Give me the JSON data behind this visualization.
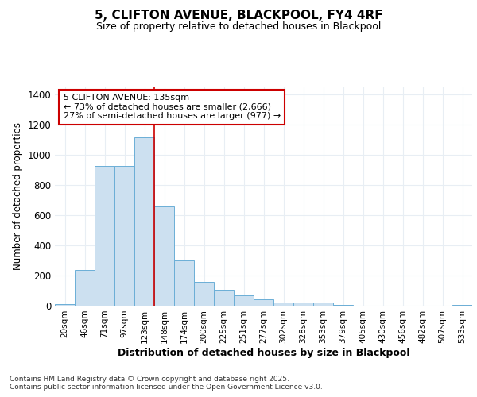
{
  "title_line1": "5, CLIFTON AVENUE, BLACKPOOL, FY4 4RF",
  "title_line2": "Size of property relative to detached houses in Blackpool",
  "xlabel": "Distribution of detached houses by size in Blackpool",
  "ylabel": "Number of detached properties",
  "bin_labels": [
    "20sqm",
    "46sqm",
    "71sqm",
    "97sqm",
    "123sqm",
    "148sqm",
    "174sqm",
    "200sqm",
    "225sqm",
    "251sqm",
    "277sqm",
    "302sqm",
    "328sqm",
    "353sqm",
    "379sqm",
    "405sqm",
    "430sqm",
    "456sqm",
    "482sqm",
    "507sqm",
    "533sqm"
  ],
  "bar_heights": [
    10,
    235,
    930,
    930,
    1120,
    660,
    300,
    160,
    105,
    70,
    40,
    20,
    20,
    20,
    5,
    0,
    0,
    0,
    0,
    0,
    5
  ],
  "bar_color": "#cce0f0",
  "bar_edge_color": "#6baed6",
  "red_line_x": 4.5,
  "annotation_text": "5 CLIFTON AVENUE: 135sqm\n← 73% of detached houses are smaller (2,666)\n27% of semi-detached houses are larger (977) →",
  "annotation_box_color": "#ffffff",
  "annotation_box_edge": "#cc0000",
  "ylim": [
    0,
    1450
  ],
  "yticks": [
    0,
    200,
    400,
    600,
    800,
    1000,
    1200,
    1400
  ],
  "footer_text": "Contains HM Land Registry data © Crown copyright and database right 2025.\nContains public sector information licensed under the Open Government Licence v3.0.",
  "bg_color": "#ffffff",
  "grid_color": "#e8eef4"
}
